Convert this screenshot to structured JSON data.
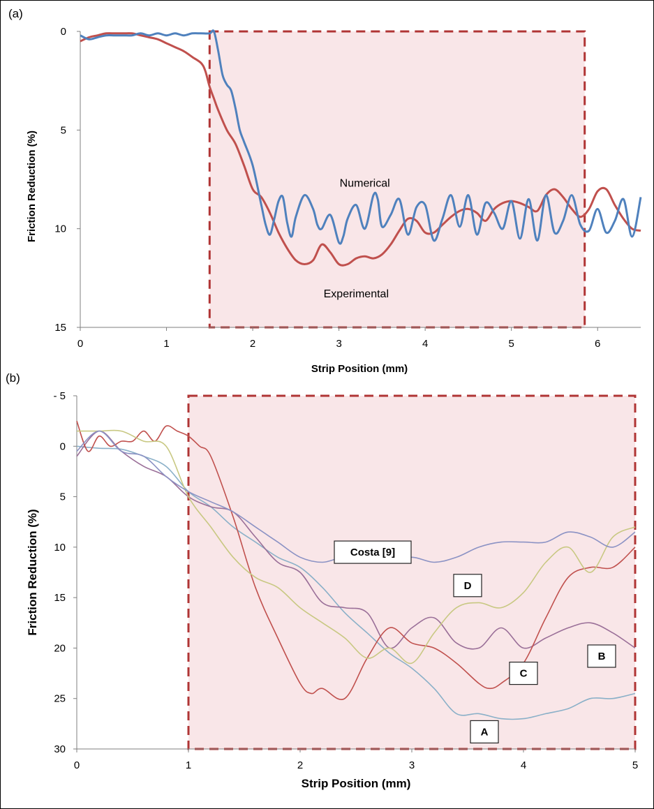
{
  "panels": {
    "a": {
      "label": "(a)"
    },
    "b": {
      "label": "(b)"
    }
  },
  "colors": {
    "region_fill": "#f9e6e8",
    "region_border": "#b03535",
    "experimental": "#c0504d",
    "numerical": "#4f81bd",
    "curve_A": "#8ab0c8",
    "curve_B": "#9a6f98",
    "curve_C": "#c0504d",
    "curve_D": "#c8c882",
    "curve_costa": "#8b92c4"
  },
  "chart_data": [
    {
      "type": "line",
      "panel": "(a)",
      "xlabel": "Strip Position (mm)",
      "ylabel": "Friction Reduction (%)",
      "xlim": [
        0,
        6.5
      ],
      "ylim": [
        15,
        0
      ],
      "y_inverted": true,
      "x_ticks": [
        0,
        1,
        2,
        3,
        4,
        5,
        6
      ],
      "y_ticks": [
        0,
        5,
        10,
        15
      ],
      "highlight_region": {
        "x": [
          1.5,
          5.85
        ],
        "y": [
          0,
          15
        ]
      },
      "series": [
        {
          "name": "Experimental",
          "x": [
            0,
            0.1,
            0.2,
            0.3,
            0.4,
            0.5,
            0.6,
            0.7,
            0.8,
            0.9,
            1.0,
            1.1,
            1.2,
            1.3,
            1.4,
            1.45,
            1.5,
            1.55,
            1.6,
            1.7,
            1.8,
            1.9,
            2.0,
            2.1,
            2.2,
            2.3,
            2.4,
            2.5,
            2.6,
            2.7,
            2.8,
            2.9,
            3.0,
            3.1,
            3.2,
            3.3,
            3.4,
            3.5,
            3.6,
            3.7,
            3.8,
            3.9,
            4.0,
            4.1,
            4.2,
            4.3,
            4.4,
            4.5,
            4.6,
            4.7,
            4.8,
            4.9,
            5.0,
            5.1,
            5.2,
            5.3,
            5.4,
            5.5,
            5.6,
            5.7,
            5.8,
            5.9,
            6.0,
            6.1,
            6.2,
            6.3,
            6.4,
            6.5
          ],
          "values": [
            0.5,
            0.3,
            0.2,
            0.1,
            0.1,
            0.1,
            0.1,
            0.2,
            0.3,
            0.4,
            0.6,
            0.8,
            1.0,
            1.3,
            1.6,
            2.0,
            2.8,
            3.4,
            4.0,
            5.0,
            5.7,
            6.8,
            8.0,
            8.4,
            9.2,
            10.2,
            11.0,
            11.6,
            11.8,
            11.6,
            10.8,
            11.2,
            11.8,
            11.8,
            11.5,
            11.4,
            11.5,
            11.3,
            10.8,
            10.1,
            9.5,
            9.6,
            10.2,
            10.2,
            9.8,
            9.4,
            9.1,
            9.0,
            9.2,
            9.6,
            9.0,
            8.7,
            8.6,
            8.7,
            8.9,
            9.1,
            8.3,
            8.0,
            8.4,
            9.0,
            9.4,
            9.0,
            8.1,
            8.0,
            8.8,
            9.5,
            10.0,
            10.1
          ]
        },
        {
          "name": "Numerical",
          "x": [
            0,
            0.1,
            0.2,
            0.3,
            0.4,
            0.5,
            0.6,
            0.7,
            0.8,
            0.9,
            1.0,
            1.1,
            1.2,
            1.3,
            1.4,
            1.5,
            1.55,
            1.6,
            1.65,
            1.7,
            1.75,
            1.8,
            1.85,
            1.9,
            2.0,
            2.1,
            2.15,
            2.2,
            2.25,
            2.3,
            2.35,
            2.4,
            2.45,
            2.5,
            2.6,
            2.7,
            2.75,
            2.8,
            2.9,
            3.0,
            3.05,
            3.1,
            3.2,
            3.3,
            3.4,
            3.45,
            3.5,
            3.6,
            3.7,
            3.8,
            3.9,
            4.0,
            4.1,
            4.2,
            4.3,
            4.4,
            4.5,
            4.6,
            4.7,
            4.8,
            4.9,
            5.0,
            5.1,
            5.2,
            5.3,
            5.4,
            5.5,
            5.6,
            5.7,
            5.8,
            5.9,
            6.0,
            6.1,
            6.2,
            6.3,
            6.4,
            6.5
          ],
          "values": [
            0.2,
            0.4,
            0.3,
            0.2,
            0.2,
            0.2,
            0.2,
            0.1,
            0.2,
            0.1,
            0.2,
            0.1,
            0.2,
            0.1,
            0.1,
            0.1,
            0.0,
            1.0,
            2.2,
            2.7,
            3.0,
            3.9,
            5.0,
            5.6,
            6.8,
            8.8,
            9.8,
            10.3,
            9.5,
            8.6,
            8.4,
            9.7,
            10.4,
            9.4,
            8.3,
            9.0,
            9.8,
            10.0,
            9.3,
            10.7,
            10.4,
            9.5,
            8.8,
            10.0,
            8.3,
            8.5,
            9.9,
            9.3,
            8.5,
            10.3,
            8.9,
            8.8,
            10.6,
            9.5,
            8.3,
            9.9,
            8.3,
            10.3,
            8.7,
            9.2,
            10.0,
            8.6,
            10.5,
            8.5,
            10.6,
            8.3,
            10.2,
            9.6,
            8.3,
            9.8,
            10.1,
            9.0,
            10.2,
            9.6,
            8.5,
            10.4,
            8.4
          ]
        }
      ],
      "annotations": [
        {
          "text": "Numerical",
          "x": 3.3,
          "y": 7.7
        },
        {
          "text": "Experimental",
          "x": 3.2,
          "y": 13.3
        }
      ]
    },
    {
      "type": "line",
      "panel": "(b)",
      "xlabel": "Strip Position (mm)",
      "ylabel": "Friction Reduction (%)",
      "xlim": [
        0,
        5
      ],
      "ylim": [
        30,
        -5
      ],
      "y_inverted": true,
      "x_ticks": [
        0,
        1,
        2,
        3,
        4,
        5
      ],
      "y_ticks": [
        -5,
        0,
        5,
        10,
        15,
        20,
        25,
        30
      ],
      "y_tick_labels": [
        "- 5",
        "0",
        "5",
        "10",
        "15",
        "20",
        "25",
        "30"
      ],
      "highlight_region": {
        "x": [
          1,
          5
        ],
        "y": [
          -5,
          30
        ]
      },
      "series": [
        {
          "name": "A",
          "x": [
            0,
            0.2,
            0.4,
            0.6,
            0.8,
            1.0,
            1.2,
            1.4,
            1.6,
            1.8,
            2.0,
            2.2,
            2.4,
            2.6,
            2.8,
            3.0,
            3.2,
            3.4,
            3.6,
            3.8,
            4.0,
            4.2,
            4.4,
            4.6,
            4.8,
            5.0
          ],
          "values": [
            0.0,
            0.2,
            0.3,
            1.0,
            2.0,
            4.5,
            6.0,
            8.0,
            9.5,
            11.0,
            12.0,
            14.0,
            16.5,
            18.5,
            20.5,
            22.0,
            24.0,
            26.5,
            26.5,
            27.0,
            27.0,
            26.5,
            26.0,
            25.0,
            25.0,
            24.5
          ]
        },
        {
          "name": "B",
          "x": [
            0,
            0.2,
            0.4,
            0.6,
            0.8,
            1.0,
            1.2,
            1.4,
            1.6,
            1.8,
            2.0,
            2.2,
            2.4,
            2.6,
            2.8,
            3.0,
            3.2,
            3.4,
            3.6,
            3.8,
            4.0,
            4.2,
            4.4,
            4.6,
            4.8,
            5.0
          ],
          "values": [
            1.0,
            -1.5,
            0.5,
            2.0,
            3.0,
            5.0,
            6.0,
            6.5,
            9.0,
            11.5,
            12.5,
            15.5,
            16.0,
            16.5,
            20.0,
            18.0,
            17.0,
            19.5,
            20.0,
            18.0,
            20.0,
            19.0,
            18.0,
            17.5,
            18.5,
            20.0
          ]
        },
        {
          "name": "C",
          "x": [
            0,
            0.1,
            0.2,
            0.3,
            0.4,
            0.5,
            0.6,
            0.7,
            0.8,
            0.9,
            1.0,
            1.1,
            1.2,
            1.4,
            1.6,
            1.8,
            2.0,
            2.1,
            2.2,
            2.4,
            2.6,
            2.8,
            3.0,
            3.2,
            3.4,
            3.6,
            3.7,
            3.8,
            4.0,
            4.2,
            4.4,
            4.6,
            4.8,
            5.0
          ],
          "values": [
            -2.5,
            0.5,
            -1.0,
            0.0,
            -0.5,
            -0.5,
            -1.5,
            -0.5,
            -2.0,
            -1.5,
            -1.0,
            0.0,
            1.0,
            7.0,
            14.0,
            19.0,
            23.5,
            24.5,
            24.0,
            25.0,
            21.0,
            18.0,
            19.5,
            20.0,
            21.5,
            23.5,
            24.0,
            23.5,
            21.5,
            17.0,
            13.0,
            12.0,
            12.0,
            10.0
          ]
        },
        {
          "name": "D",
          "x": [
            0,
            0.2,
            0.4,
            0.6,
            0.8,
            1.0,
            1.2,
            1.4,
            1.6,
            1.8,
            2.0,
            2.2,
            2.4,
            2.6,
            2.8,
            3.0,
            3.2,
            3.4,
            3.6,
            3.8,
            4.0,
            4.2,
            4.4,
            4.6,
            4.8,
            5.0
          ],
          "values": [
            -1.5,
            -1.5,
            -1.5,
            -0.5,
            0.0,
            5.0,
            8.0,
            11.0,
            13.0,
            14.0,
            16.0,
            17.5,
            19.0,
            21.0,
            20.0,
            21.5,
            18.5,
            16.0,
            15.5,
            16.0,
            14.5,
            11.5,
            10.0,
            12.5,
            9.0,
            8.0
          ]
        },
        {
          "name": "Costa [9]",
          "x": [
            0,
            0.2,
            0.4,
            0.6,
            0.8,
            1.0,
            1.2,
            1.4,
            1.6,
            1.8,
            2.0,
            2.2,
            2.4,
            2.6,
            2.8,
            3.0,
            3.2,
            3.4,
            3.6,
            3.8,
            4.0,
            4.2,
            4.4,
            4.6,
            4.8,
            5.0
          ],
          "values": [
            0.5,
            -1.5,
            0.5,
            1.0,
            3.0,
            4.5,
            5.5,
            6.5,
            8.0,
            9.5,
            11.0,
            11.5,
            11.0,
            11.5,
            11.5,
            11.0,
            11.5,
            11.0,
            10.0,
            9.5,
            9.5,
            9.5,
            8.5,
            9.0,
            10.0,
            8.5
          ]
        }
      ],
      "annotations": [
        {
          "text": "Costa [9]",
          "x": 2.65,
          "y": 10.5
        },
        {
          "text": "D",
          "x": 3.5,
          "y": 13.8
        },
        {
          "text": "B",
          "x": 4.7,
          "y": 20.8
        },
        {
          "text": "C",
          "x": 4.0,
          "y": 22.5
        },
        {
          "text": "A",
          "x": 3.65,
          "y": 28.3
        }
      ]
    }
  ]
}
